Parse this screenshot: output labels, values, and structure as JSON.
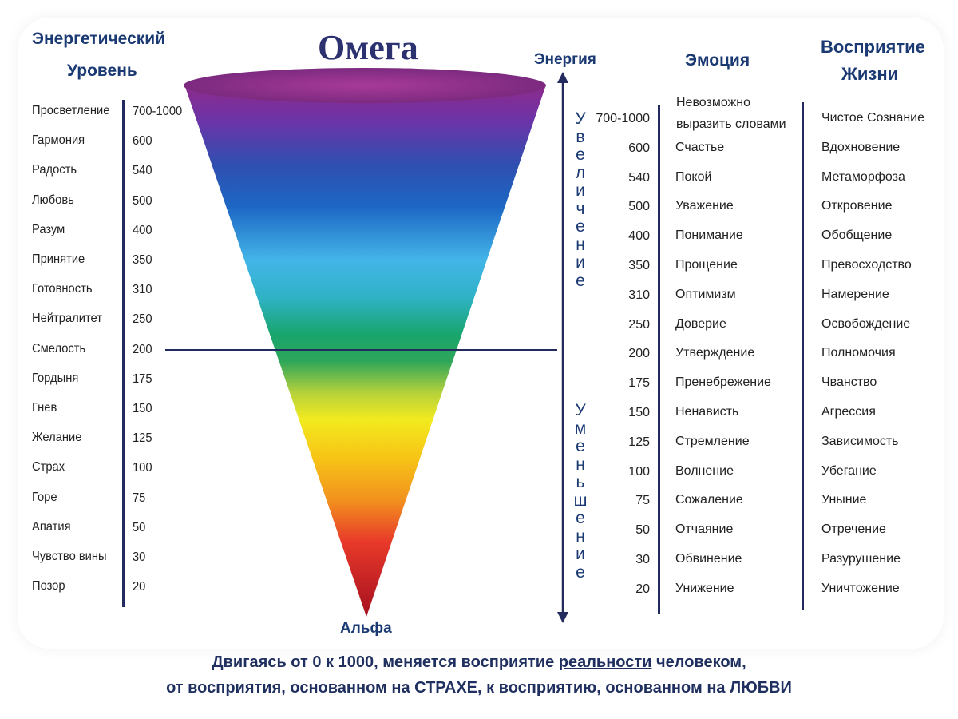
{
  "titles": {
    "left_header_1": "Энергетический",
    "left_header_2": "Уровень",
    "top": "Омега",
    "bottom": "Альфа",
    "energy": "Энергия",
    "emotion": "Эмоция",
    "perception_1": "Восприятие",
    "perception_2": "Жизни"
  },
  "arrow_labels": {
    "increase": [
      "У",
      "в",
      "е",
      "л",
      "и",
      "ч",
      "е",
      "н",
      "и",
      "е"
    ],
    "decrease": [
      "У",
      "м",
      "е",
      "н",
      "ь",
      "ш",
      "е",
      "н",
      "и",
      "е"
    ]
  },
  "levels": [
    {
      "name": "Просветление",
      "value": "700-1000",
      "emotion": "Невозможно",
      "emotion_2": "выразить словами",
      "perception": "Чистое Сознание"
    },
    {
      "name": "Гармония",
      "value": "600",
      "emotion": "Счастье",
      "perception": "Вдохновение"
    },
    {
      "name": "Радость",
      "value": "540",
      "emotion": "Покой",
      "perception": "Метаморфоза"
    },
    {
      "name": "Любовь",
      "value": "500",
      "emotion": "Уважение",
      "perception": "Откровение"
    },
    {
      "name": "Разум",
      "value": "400",
      "emotion": "Понимание",
      "perception": "Обобщение"
    },
    {
      "name": "Принятие",
      "value": "350",
      "emotion": "Прощение",
      "perception": "Превосходство"
    },
    {
      "name": "Готовность",
      "value": "310",
      "emotion": "Оптимизм",
      "perception": "Намерение"
    },
    {
      "name": "Нейтралитет",
      "value": "250",
      "emotion": "Доверие",
      "perception": "Освобождение"
    },
    {
      "name": "Смелость",
      "value": "200",
      "emotion": "Утверждение",
      "perception": "Полномочия"
    },
    {
      "name": "Гордыня",
      "value": "175",
      "emotion": "Пренебрежение",
      "perception": "Чванство"
    },
    {
      "name": "Гнев",
      "value": "150",
      "emotion": "Ненависть",
      "perception": "Агрессия"
    },
    {
      "name": "Желание",
      "value": "125",
      "emotion": "Стремление",
      "perception": "Зависимость"
    },
    {
      "name": "Страх",
      "value": "100",
      "emotion": "Волнение",
      "perception": "Убегание"
    },
    {
      "name": "Горе",
      "value": "75",
      "emotion": "Сожаление",
      "perception": "Уныние"
    },
    {
      "name": "Апатия",
      "value": "50",
      "emotion": "Отчаяние",
      "perception": "Отречение"
    },
    {
      "name": "Чувство вины",
      "value": "30",
      "emotion": "Обвинение",
      "perception": "Разурушение"
    },
    {
      "name": "Позор",
      "value": "20",
      "emotion": "Унижение",
      "perception": "Уничтожение"
    }
  ],
  "footer": {
    "line1_a": "Двигаясь от 0 к 1000, меняется восприятие ",
    "line1_u": "реальности",
    "line1_b": " человеком,",
    "line2": "от восприятия, основанном на СТРАХЕ, к восприятию, основанном на ЛЮБВИ"
  },
  "colors": {
    "header": "#1b3a73",
    "lines": "#222a5e"
  }
}
